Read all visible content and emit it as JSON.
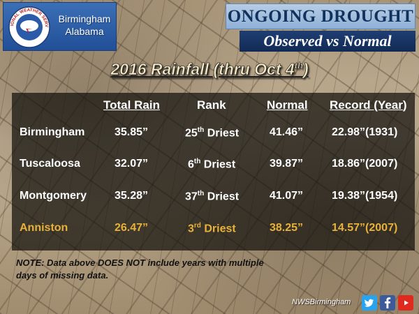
{
  "header": {
    "office_line1": "Birmingham",
    "office_line2": "Alabama",
    "logo_text": "NATIONAL WEATHER SERVICE",
    "title": "ONGOING DROUGHT",
    "subtitle": "Observed vs Normal"
  },
  "chart": {
    "title_main": "2016 Rainfall (thru Oct 4",
    "title_sup": "th",
    "title_end": ")"
  },
  "table": {
    "headers": {
      "total_rain": "Total Rain",
      "rank": "Rank",
      "normal": "Normal",
      "record": "Record (Year",
      "record_end": ")"
    },
    "rows": [
      {
        "city": "Birmingham",
        "total": "35.85”",
        "rank_num": "25",
        "rank_sup": "th",
        "rank_word": " Driest",
        "normal": "41.46”",
        "record": "22.98”(1931)"
      },
      {
        "city": "Tuscaloosa",
        "total": "32.07”",
        "rank_num": "6",
        "rank_sup": "th",
        "rank_word": " Driest",
        "normal": "39.87”",
        "record": "18.86”(2007)"
      },
      {
        "city": "Montgomery",
        "total": "35.28”",
        "rank_num": "37",
        "rank_sup": "th",
        "rank_word": " Driest",
        "normal": "41.07”",
        "record": "19.38”(1954)"
      },
      {
        "city": "Anniston",
        "total": "26.47”",
        "rank_num": "3",
        "rank_sup": "rd",
        "rank_word": " Driest",
        "normal": "38.25”",
        "record": "14.57”(2007)"
      }
    ],
    "highlight_color": "#e8b13a"
  },
  "note": "NOTE: Data above DOES NOT include years with multiple days of missing data.",
  "footer": {
    "handle": "NWSBirmingham",
    "icons": [
      "twitter-icon",
      "facebook-icon",
      "youtube-icon"
    ]
  }
}
